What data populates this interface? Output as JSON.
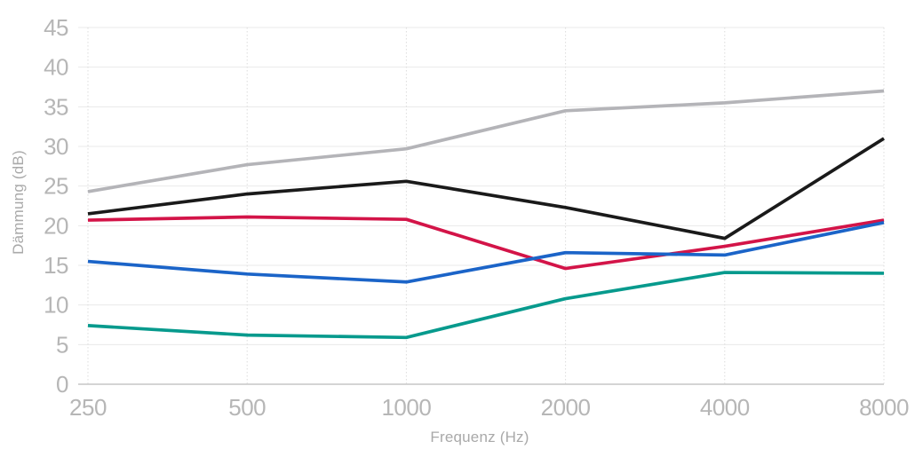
{
  "chart_data": {
    "type": "line",
    "title": "",
    "xlabel": "Frequenz (Hz)",
    "ylabel": "Dämmung (dB)",
    "x_scale": "log2",
    "x": [
      250,
      500,
      1000,
      2000,
      4000,
      8000
    ],
    "x_tick_labels": [
      "250",
      "500",
      "1000",
      "2000",
      "4000",
      "8000"
    ],
    "y_ticks": [
      0,
      5,
      10,
      15,
      20,
      25,
      30,
      35,
      40,
      45
    ],
    "ylim": [
      0,
      45
    ],
    "grid": true,
    "legend_position": "none",
    "series": [
      {
        "name": "gray-line",
        "color": "#b4b4b8",
        "values": [
          24.3,
          27.7,
          29.7,
          34.5,
          35.5,
          37.0
        ]
      },
      {
        "name": "black-line",
        "color": "#1a1a1a",
        "values": [
          21.5,
          24.0,
          25.6,
          22.3,
          18.4,
          31.0
        ]
      },
      {
        "name": "red-line",
        "color": "#d31448",
        "values": [
          20.7,
          21.1,
          20.8,
          14.6,
          17.4,
          20.7
        ]
      },
      {
        "name": "blue-line",
        "color": "#1b64c8",
        "values": [
          15.5,
          13.9,
          12.9,
          16.6,
          16.3,
          20.4
        ]
      },
      {
        "name": "teal-line",
        "color": "#079a8d",
        "values": [
          7.4,
          6.2,
          5.9,
          10.8,
          14.1,
          14.0
        ]
      }
    ]
  },
  "layout": {
    "background": "#ffffff",
    "grid_color": "#eaeaea",
    "zero_axis_color": "#c6c6c6",
    "dotted_grid_color": "#dcdcdc",
    "tick_label_color": "#b6b6b6",
    "axis_title_color": "#a9a9a9"
  }
}
